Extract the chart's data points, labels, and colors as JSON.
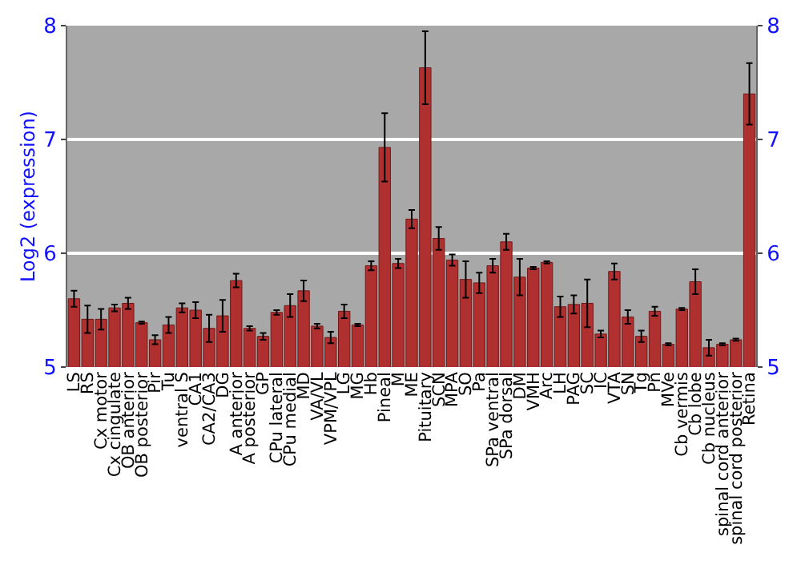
{
  "chart_data": {
    "type": "bar",
    "ylabel": "Log2 (expression)",
    "categories": [
      "LS",
      "RS",
      "Cx motor",
      "Cx cingulate",
      "OB anterior",
      "OB posterior",
      "Pir",
      "Tu",
      "ventral S",
      "CA1",
      "CA2/CA3",
      "DG",
      "A anterior",
      "A posterior",
      "GP",
      "CPu lateral",
      "CPu medial",
      "MD",
      "VA/VL",
      "VPM/VPL",
      "LG",
      "MG",
      "Hb",
      "Pineal",
      "M",
      "ME",
      "Pituitary",
      "SCN",
      "MPA",
      "SO",
      "Pa",
      "SPa ventral",
      "SPa dorsal",
      "DM",
      "VMH",
      "Arc",
      "LH",
      "PAG",
      "SC",
      "IC",
      "VTA",
      "SN",
      "Tg",
      "Pn",
      "MVe",
      "Cb vermis",
      "Cb lobe",
      "Cb nucleus",
      "spinal cord anterior",
      "spinal cord posterior",
      "Retina"
    ],
    "values": [
      5.6,
      5.42,
      5.42,
      5.52,
      5.56,
      5.39,
      5.24,
      5.37,
      5.52,
      5.5,
      5.34,
      5.45,
      5.76,
      5.34,
      5.27,
      5.48,
      5.54,
      5.67,
      5.36,
      5.26,
      5.49,
      5.37,
      5.89,
      6.93,
      5.91,
      6.3,
      7.63,
      6.13,
      5.94,
      5.77,
      5.74,
      5.89,
      6.1,
      5.79,
      5.87,
      5.92,
      5.53,
      5.55,
      5.56,
      5.29,
      5.84,
      5.44,
      5.27,
      5.49,
      5.2,
      5.51,
      5.75,
      5.17,
      5.2,
      5.24,
      7.4
    ],
    "errors": [
      0.07,
      0.12,
      0.09,
      0.03,
      0.05,
      0.01,
      0.04,
      0.07,
      0.04,
      0.07,
      0.12,
      0.14,
      0.06,
      0.02,
      0.03,
      0.02,
      0.1,
      0.09,
      0.02,
      0.05,
      0.06,
      0.01,
      0.04,
      0.3,
      0.04,
      0.08,
      0.32,
      0.1,
      0.05,
      0.16,
      0.09,
      0.06,
      0.07,
      0.16,
      0.01,
      0.01,
      0.09,
      0.08,
      0.21,
      0.03,
      0.07,
      0.06,
      0.05,
      0.04,
      0.01,
      0.01,
      0.11,
      0.07,
      0.01,
      0.01,
      0.27
    ],
    "color": "#b03030",
    "ylim": [
      5,
      8
    ],
    "yticks": [
      5,
      6,
      7,
      8
    ],
    "y2lim": [
      5,
      8
    ],
    "y2ticks": [
      5,
      6,
      7,
      8
    ],
    "grid": "y"
  }
}
